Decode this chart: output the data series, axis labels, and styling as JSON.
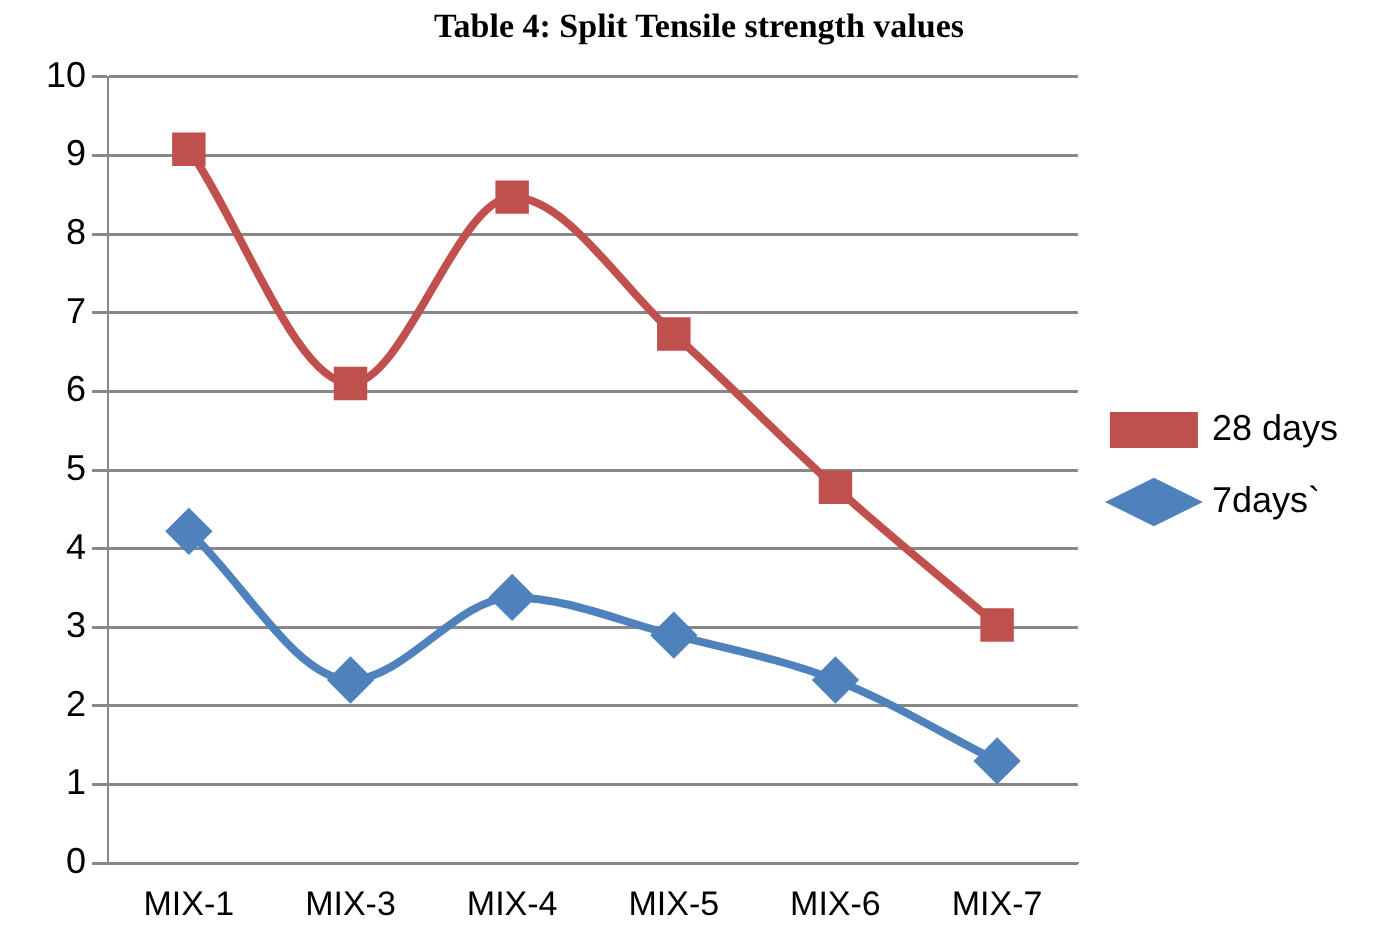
{
  "chart_data": {
    "type": "line",
    "title": "Table 4: Split Tensile strength values",
    "categories": [
      "MIX-1",
      "MIX-3",
      "MIX-4",
      "MIX-5",
      "MIX-6",
      "MIX-7"
    ],
    "series": [
      {
        "name": "28 days",
        "color": "#c0504d",
        "marker": "square",
        "values": [
          9.08,
          6.1,
          8.47,
          6.73,
          4.78,
          3.03
        ]
      },
      {
        "name": "7days`",
        "color": "#4f81bd",
        "marker": "diamond",
        "values": [
          4.22,
          2.33,
          3.38,
          2.9,
          2.33,
          1.3
        ]
      }
    ],
    "ylim": [
      0,
      10
    ],
    "yticks": [
      0,
      1,
      2,
      3,
      4,
      5,
      6,
      7,
      8,
      9,
      10
    ],
    "grid": "y",
    "legend": "right"
  }
}
